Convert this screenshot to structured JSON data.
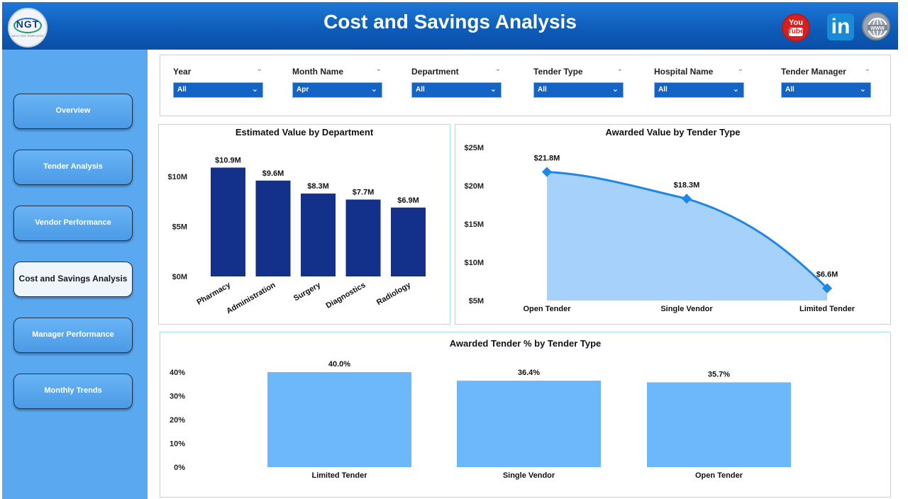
{
  "header": {
    "title": "Cost and Savings Analysis",
    "logo_text": "NGT",
    "logo_subtext": "NEXT GEN TEMPLATES",
    "social": {
      "youtube_top": "You",
      "youtube_bottom": "Tube",
      "linkedin": "in"
    }
  },
  "sidebar": {
    "items": [
      {
        "label": "Overview",
        "active": false
      },
      {
        "label": "Tender Analysis",
        "active": false
      },
      {
        "label": "Vendor Performance",
        "active": false
      },
      {
        "label": "Cost and Savings Analysis",
        "active": true
      },
      {
        "label": "Manager Performance",
        "active": false
      },
      {
        "label": "Monthly Trends",
        "active": false
      }
    ]
  },
  "filters": [
    {
      "label": "Year",
      "value": "All"
    },
    {
      "label": "Month Name",
      "value": "Apr"
    },
    {
      "label": "Department",
      "value": "All"
    },
    {
      "label": "Tender Type",
      "value": "All"
    },
    {
      "label": "Hospital Name",
      "value": "All"
    },
    {
      "label": "Tender Manager",
      "value": "All"
    }
  ],
  "colors": {
    "header": "#0d5ab8",
    "sidebar": "#5aa8f0",
    "dept_bar": "#13318a",
    "area_fill": "#a6d1fa",
    "area_line": "#1f87e8",
    "pct_bar": "#6cb8fb"
  },
  "chart_data": [
    {
      "type": "bar",
      "title": "Estimated Value by Department",
      "categories": [
        "Pharmacy",
        "Administration",
        "Surgery",
        "Diagnostics",
        "Radiology"
      ],
      "values": [
        10.9,
        9.6,
        8.3,
        7.7,
        6.9
      ],
      "data_labels": [
        "$10.9M",
        "$9.6M",
        "$8.3M",
        "$7.7M",
        "$6.9M"
      ],
      "yticks": [
        0,
        5,
        10
      ],
      "ytick_labels": [
        "$0M",
        "$5M",
        "$10M"
      ],
      "ylim": [
        0,
        11.5
      ],
      "unit": "$M"
    },
    {
      "type": "area",
      "title": "Awarded Value by Tender Type",
      "categories": [
        "Open Tender",
        "Single Vendor",
        "Limited Tender"
      ],
      "values": [
        21.8,
        18.3,
        6.6
      ],
      "data_labels": [
        "$21.8M",
        "$18.3M",
        "$6.6M"
      ],
      "yticks": [
        5,
        10,
        15,
        20,
        25
      ],
      "ytick_labels": [
        "$5M",
        "$10M",
        "$15M",
        "$20M",
        "$25M"
      ],
      "ylim": [
        5,
        25
      ],
      "unit": "$M"
    },
    {
      "type": "bar",
      "title": "Awarded Tender % by Tender Type",
      "categories": [
        "Limited Tender",
        "Single Vendor",
        "Open Tender"
      ],
      "values": [
        40.0,
        36.4,
        35.7
      ],
      "data_labels": [
        "40.0%",
        "36.4%",
        "35.7%"
      ],
      "yticks": [
        0,
        10,
        20,
        30,
        40
      ],
      "ytick_labels": [
        "0%",
        "10%",
        "20%",
        "30%",
        "40%"
      ],
      "ylim": [
        0,
        40
      ],
      "unit": "%"
    }
  ]
}
